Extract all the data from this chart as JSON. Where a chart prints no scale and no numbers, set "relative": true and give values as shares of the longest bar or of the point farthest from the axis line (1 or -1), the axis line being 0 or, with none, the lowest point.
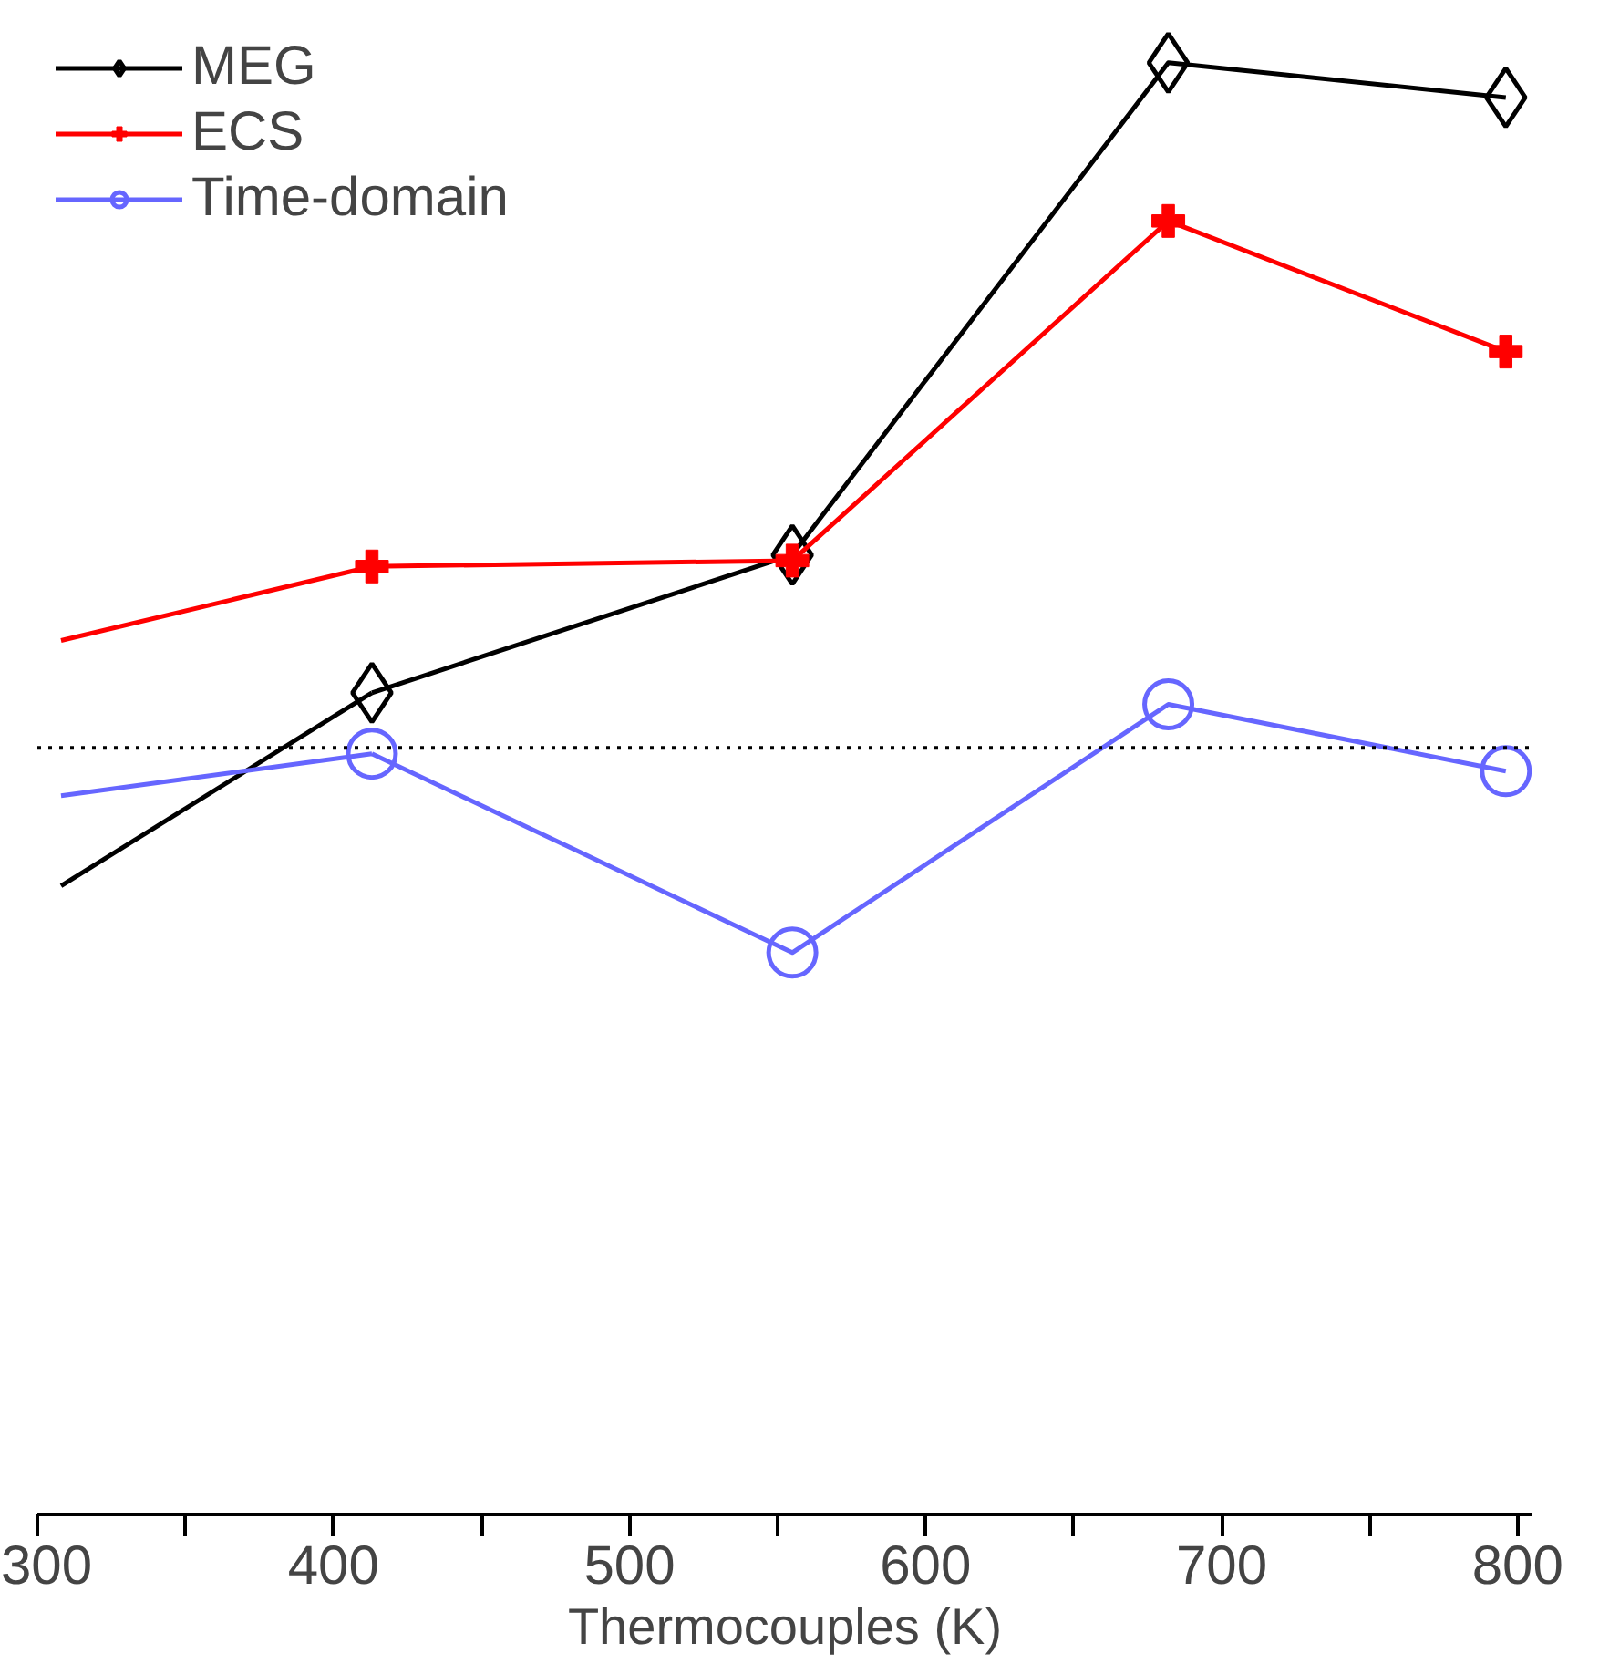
{
  "chart_data": {
    "type": "line",
    "relative": true,
    "xlabel": "Thermocouples (K)",
    "xlim": [
      300,
      805
    ],
    "xticks": [
      300,
      {
        "value": 350,
        "label": null
      },
      400,
      {
        "value": 450,
        "label": null
      },
      500,
      {
        "value": 550,
        "label": null
      },
      600,
      {
        "value": 650,
        "label": null
      },
      700,
      {
        "value": 750,
        "label": null
      },
      800
    ],
    "legend": "top left",
    "grid": false,
    "line_style": "solid",
    "ref_lines": [
      {
        "axis": "y",
        "value": 0.528,
        "color": "#000000",
        "line_style": "dotted"
      }
    ],
    "series": [
      {
        "name": "MEG",
        "color": "#000000",
        "marker": "diamond",
        "x": [
          413,
          555,
          682,
          796
        ],
        "values": [
          0.566,
          0.661,
          1.0,
          0.976
        ]
      },
      {
        "name": "ECS",
        "color": "#ff0000",
        "marker": "cross",
        "x": [
          413,
          555,
          682,
          796
        ],
        "values": [
          0.653,
          0.657,
          0.891,
          0.801
        ]
      },
      {
        "name": "Time-domain",
        "color": "#6666ff",
        "marker": "circle",
        "x": [
          413,
          555,
          682,
          796
        ],
        "values": [
          0.524,
          0.387,
          0.558,
          0.512
        ]
      },
      {
        "color": "#000000",
        "marker": "none",
        "x": [
          308,
          413
        ],
        "values": [
          0.433,
          0.566
        ]
      },
      {
        "color": "#ff0000",
        "marker": "none",
        "x": [
          308,
          413
        ],
        "values": [
          0.602,
          0.653
        ]
      },
      {
        "color": "#6666ff",
        "marker": "none",
        "x": [
          308,
          413
        ],
        "values": [
          0.495,
          0.524
        ]
      }
    ]
  }
}
